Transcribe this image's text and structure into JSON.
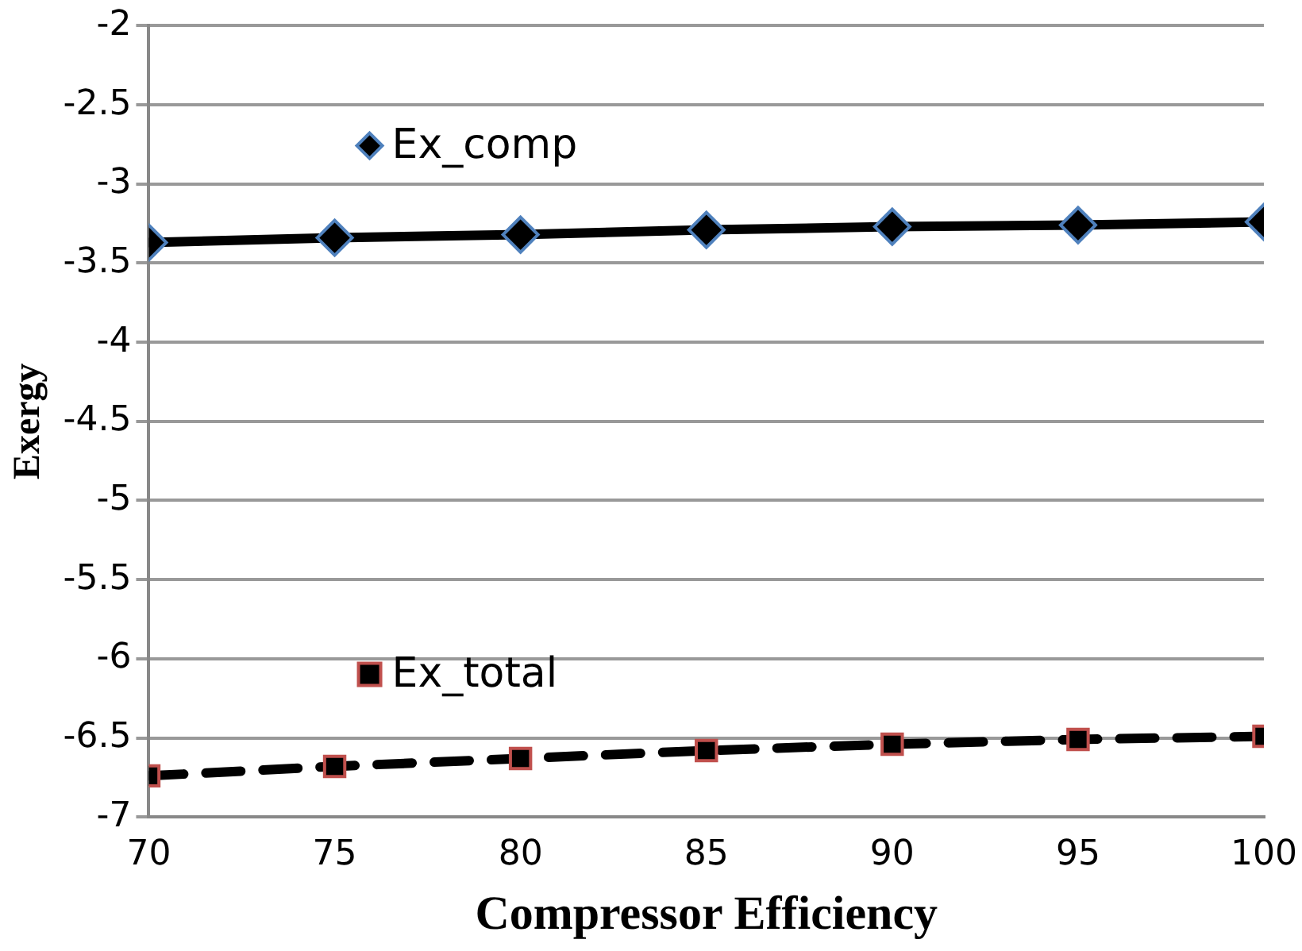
{
  "chart_data": {
    "type": "line",
    "xlabel": "Compressor Efficiency",
    "ylabel": "Exergy",
    "x": [
      70,
      75,
      80,
      85,
      90,
      95,
      100
    ],
    "series": [
      {
        "name": "Ex_comp",
        "color": "#000000",
        "marker": "diamond",
        "line_style": "solid",
        "values": [
          -3.37,
          -3.34,
          -3.32,
          -3.29,
          -3.27,
          -3.26,
          -3.24
        ]
      },
      {
        "name": "Ex_total",
        "color": "#000000",
        "marker": "square",
        "line_style": "dashed",
        "values": [
          -6.74,
          -6.68,
          -6.63,
          -6.58,
          -6.54,
          -6.51,
          -6.49
        ]
      }
    ],
    "xlim": [
      70,
      100
    ],
    "xticks": [
      70,
      75,
      80,
      85,
      90,
      95,
      100
    ],
    "ylim": [
      -7,
      -2
    ],
    "yticks": [
      -7,
      -6.5,
      -6,
      -5.5,
      -5,
      -4.5,
      -4,
      -3.5,
      -3,
      -2.5,
      -2
    ],
    "grid": "y",
    "legend": "left"
  }
}
